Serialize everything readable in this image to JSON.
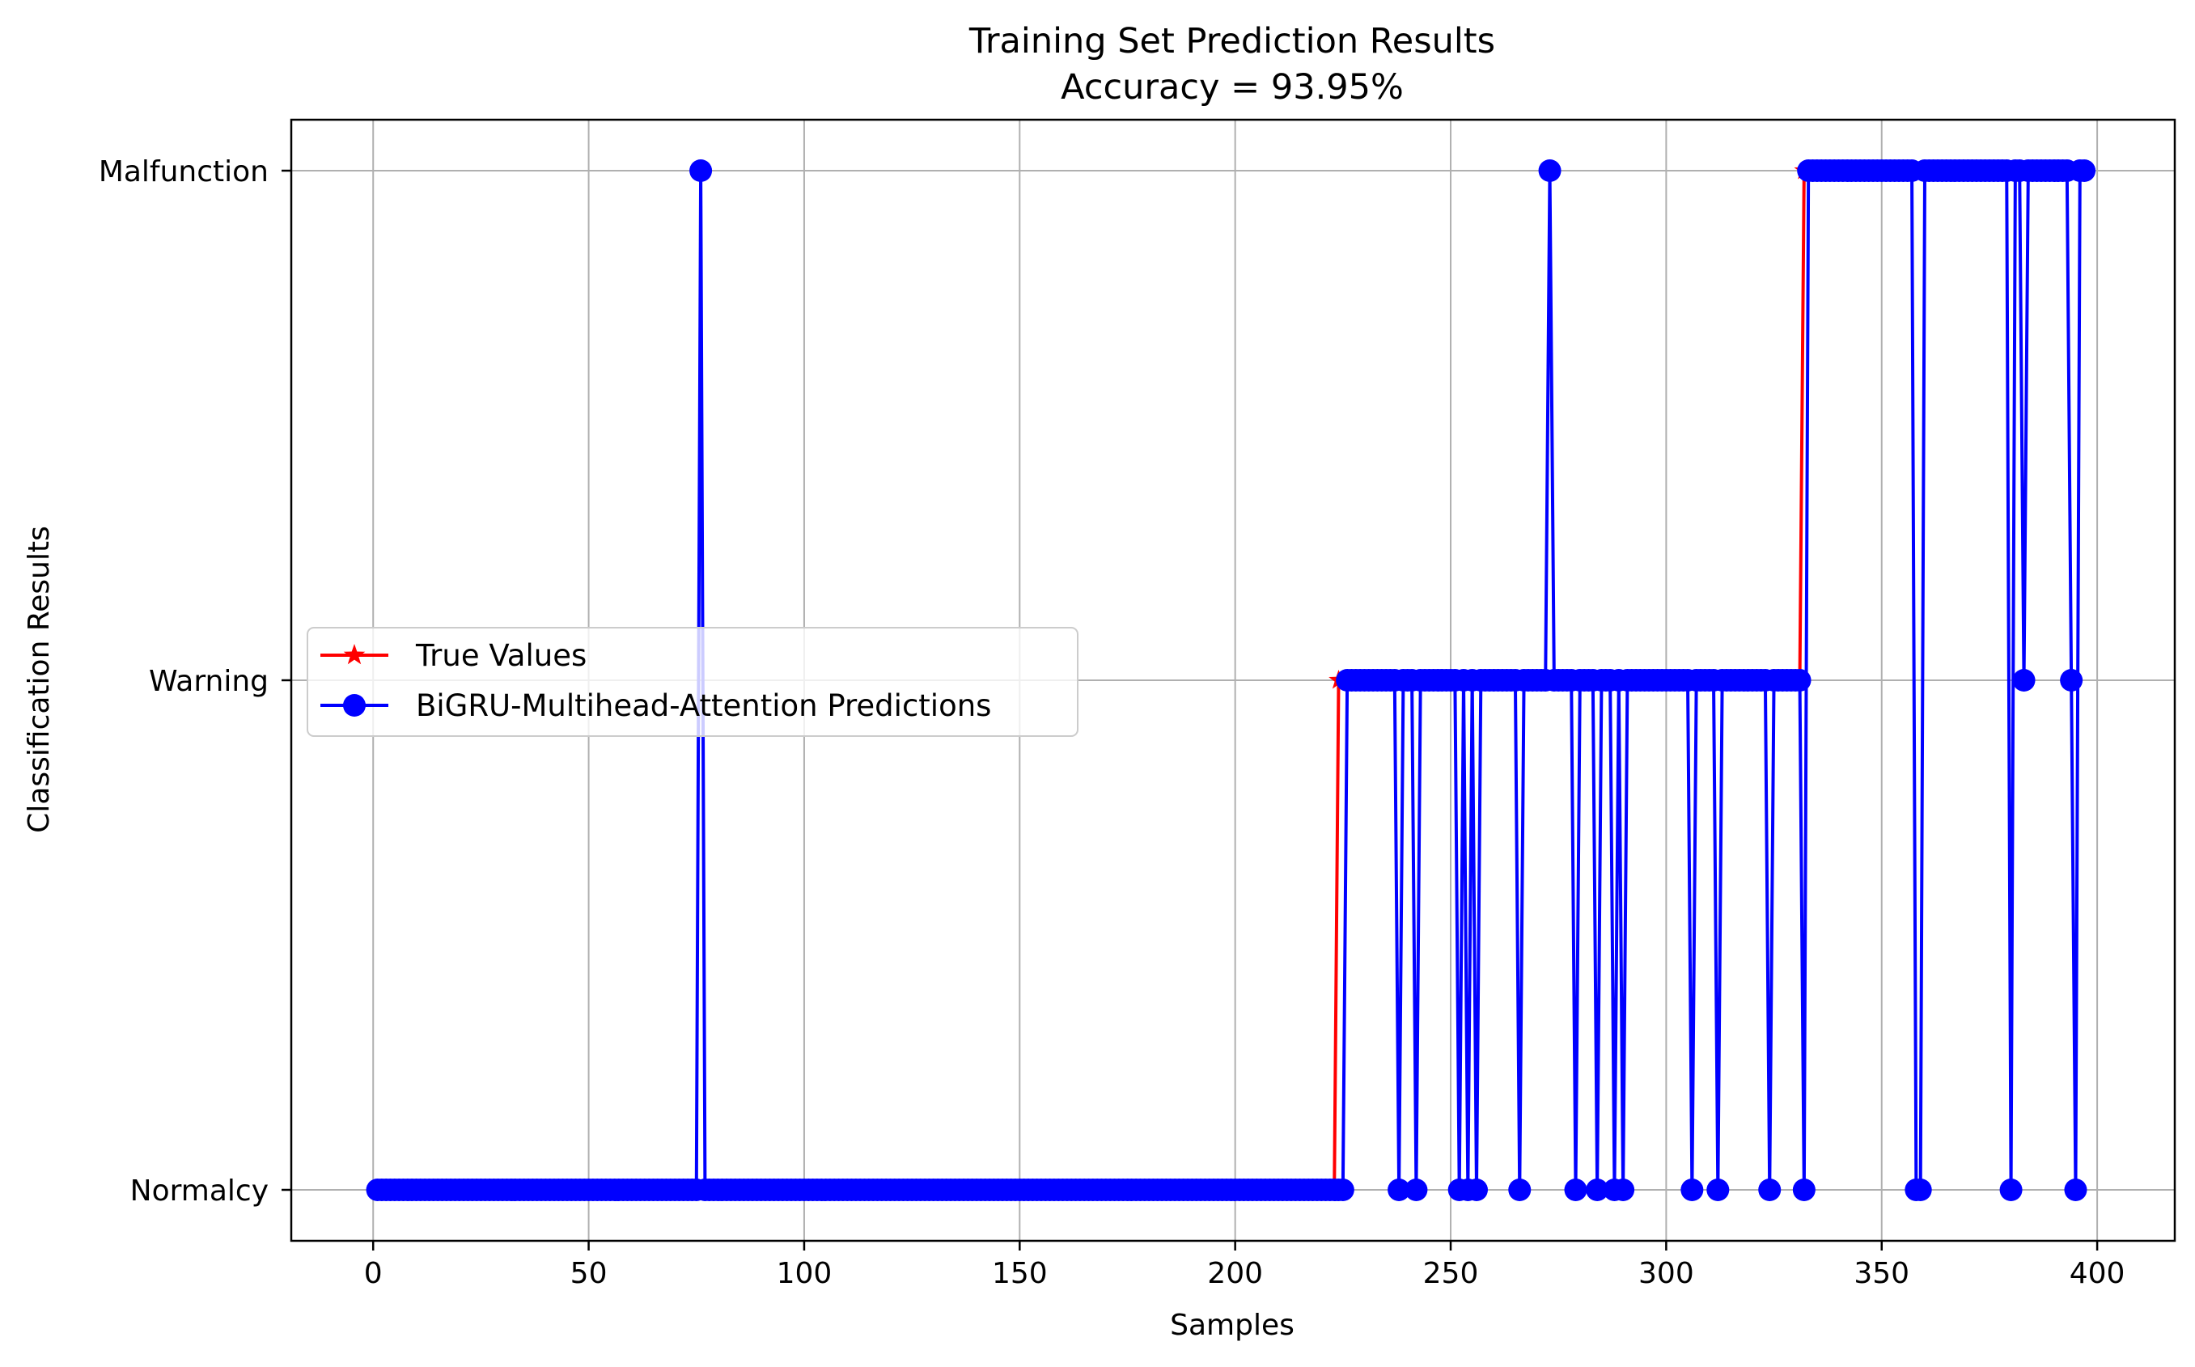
{
  "chart_data": {
    "type": "line",
    "title": "Training Set Prediction Results",
    "subtitle": "Accuracy = 93.95%",
    "xlabel": "Samples",
    "ylabel": "Classification Results",
    "xlim": [
      -19,
      418
    ],
    "ylim": [
      0.9,
      3.1
    ],
    "x_ticks": [
      0,
      50,
      100,
      150,
      200,
      250,
      300,
      350,
      400
    ],
    "y_ticks": [
      1,
      2,
      3
    ],
    "y_tick_labels": [
      "Normalcy",
      "Warning",
      "Malfunction"
    ],
    "grid": true,
    "legend_position": "center-left",
    "n_samples": 397,
    "series": [
      {
        "name": "True Values",
        "color": "#ff0000",
        "marker": "star",
        "segments": [
          {
            "from": 1,
            "to": 223,
            "value": 1
          },
          {
            "from": 224,
            "to": 331,
            "value": 2
          },
          {
            "from": 332,
            "to": 397,
            "value": 3
          }
        ]
      },
      {
        "name": "BiGRU-Multihead-Attention Predictions",
        "color": "#0000ff",
        "marker": "circle",
        "segments": [
          {
            "from": 1,
            "to": 225,
            "value": 1
          },
          {
            "from": 226,
            "to": 332,
            "value": 2
          },
          {
            "from": 333,
            "to": 397,
            "value": 3
          }
        ],
        "overrides": [
          {
            "x": 76,
            "value": 3
          },
          {
            "x": 238,
            "value": 1
          },
          {
            "x": 242,
            "value": 1
          },
          {
            "x": 252,
            "value": 1
          },
          {
            "x": 254,
            "value": 1
          },
          {
            "x": 256,
            "value": 1
          },
          {
            "x": 266,
            "value": 1
          },
          {
            "x": 273,
            "value": 3
          },
          {
            "x": 279,
            "value": 1
          },
          {
            "x": 284,
            "value": 1
          },
          {
            "x": 288,
            "value": 1
          },
          {
            "x": 290,
            "value": 1
          },
          {
            "x": 306,
            "value": 1
          },
          {
            "x": 312,
            "value": 1
          },
          {
            "x": 324,
            "value": 1
          },
          {
            "x": 332,
            "value": 1
          },
          {
            "x": 358,
            "value": 1
          },
          {
            "x": 359,
            "value": 1
          },
          {
            "x": 380,
            "value": 1
          },
          {
            "x": 383,
            "value": 2
          },
          {
            "x": 394,
            "value": 2
          },
          {
            "x": 395,
            "value": 1
          }
        ]
      }
    ]
  }
}
